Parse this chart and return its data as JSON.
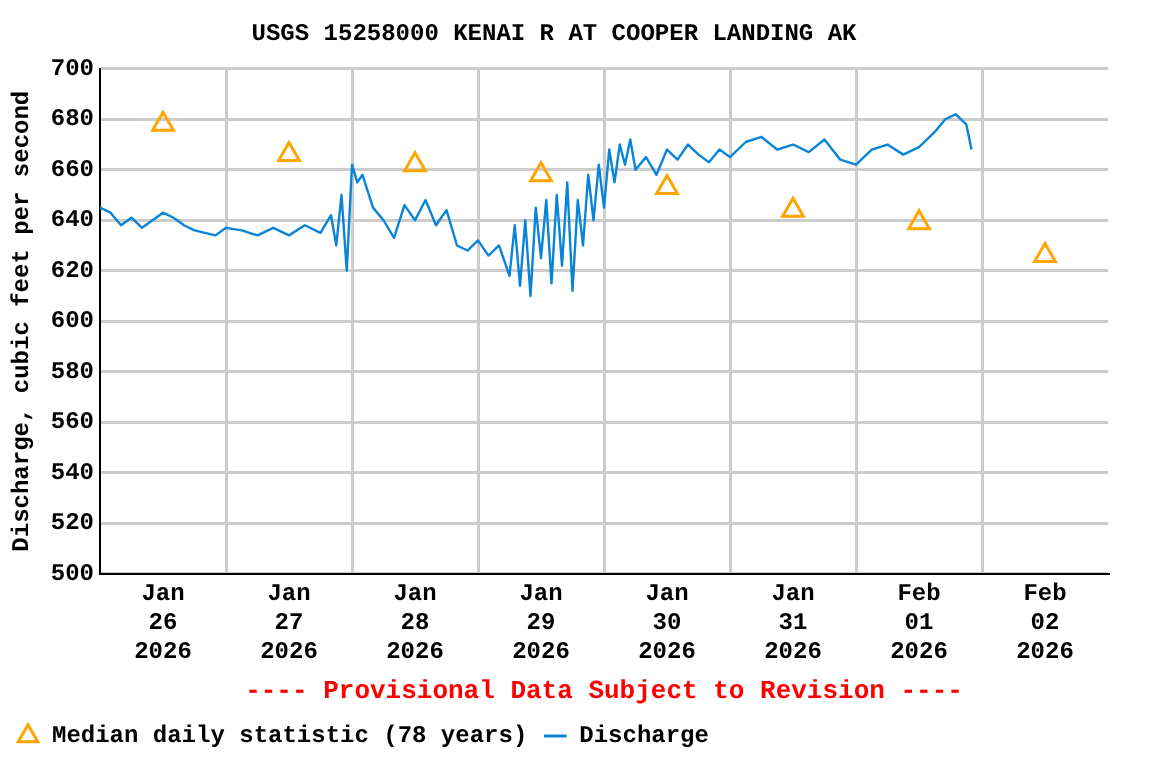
{
  "chart_data": {
    "type": "line",
    "title": "USGS 15258000 KENAI R AT COOPER LANDING AK",
    "ylabel": "Discharge, cubic feet per second",
    "xlim": [
      "2026-01-26T00:00",
      "2026-02-03T00:00"
    ],
    "xticks": [
      {
        "value": "2026-01-26T12:00",
        "label": "Jan 26 2026"
      },
      {
        "value": "2026-01-27T00:00",
        "label": null
      },
      {
        "value": "2026-01-27T12:00",
        "label": "Jan 27 2026"
      },
      {
        "value": "2026-01-28T00:00",
        "label": null
      },
      {
        "value": "2026-01-28T12:00",
        "label": "Jan 28 2026"
      },
      {
        "value": "2026-01-29T00:00",
        "label": null
      },
      {
        "value": "2026-01-29T12:00",
        "label": "Jan 29 2026"
      },
      {
        "value": "2026-01-30T00:00",
        "label": null
      },
      {
        "value": "2026-01-30T12:00",
        "label": "Jan 30 2026"
      },
      {
        "value": "2026-01-31T00:00",
        "label": null
      },
      {
        "value": "2026-01-31T12:00",
        "label": "Jan 31 2026"
      },
      {
        "value": "2026-02-01T00:00",
        "label": null
      },
      {
        "value": "2026-02-01T12:00",
        "label": "Feb 01 2026"
      },
      {
        "value": "2026-02-02T00:00",
        "label": null
      },
      {
        "value": "2026-02-02T12:00",
        "label": "Feb 02 2026"
      }
    ],
    "ylim": [
      500,
      700
    ],
    "yticks": [
      500,
      520,
      540,
      560,
      580,
      600,
      620,
      640,
      660,
      680,
      700
    ],
    "grid": true,
    "legend": "bottom",
    "annotations": [
      "---- Provisional Data Subject to Revision ----"
    ],
    "series": [
      {
        "name": "Median daily statistic (78 years)",
        "type": "scatter",
        "marker": "triangle",
        "color": "#ffa500",
        "x": [
          "2026-01-26T12:00",
          "2026-01-27T12:00",
          "2026-01-28T12:00",
          "2026-01-29T12:00",
          "2026-01-30T12:00",
          "2026-01-31T12:00",
          "2026-02-01T12:00",
          "2026-02-02T12:00"
        ],
        "values": [
          678,
          666,
          662,
          658,
          653,
          644,
          639,
          626
        ]
      },
      {
        "name": "Discharge",
        "type": "line",
        "marker": "none",
        "color": "#0a84d6",
        "x": [
          "2026-01-26T00:00",
          "2026-01-26T02:00",
          "2026-01-26T04:00",
          "2026-01-26T06:00",
          "2026-01-26T08:00",
          "2026-01-26T10:00",
          "2026-01-26T12:00",
          "2026-01-26T14:00",
          "2026-01-26T16:00",
          "2026-01-26T18:00",
          "2026-01-26T20:00",
          "2026-01-26T22:00",
          "2026-01-27T00:00",
          "2026-01-27T03:00",
          "2026-01-27T06:00",
          "2026-01-27T09:00",
          "2026-01-27T12:00",
          "2026-01-27T15:00",
          "2026-01-27T18:00",
          "2026-01-27T20:00",
          "2026-01-27T21:00",
          "2026-01-27T22:00",
          "2026-01-27T23:00",
          "2026-01-28T00:00",
          "2026-01-28T01:00",
          "2026-01-28T02:00",
          "2026-01-28T04:00",
          "2026-01-28T06:00",
          "2026-01-28T08:00",
          "2026-01-28T10:00",
          "2026-01-28T12:00",
          "2026-01-28T14:00",
          "2026-01-28T16:00",
          "2026-01-28T18:00",
          "2026-01-28T20:00",
          "2026-01-28T22:00",
          "2026-01-29T00:00",
          "2026-01-29T02:00",
          "2026-01-29T04:00",
          "2026-01-29T06:00",
          "2026-01-29T07:00",
          "2026-01-29T08:00",
          "2026-01-29T09:00",
          "2026-01-29T10:00",
          "2026-01-29T11:00",
          "2026-01-29T12:00",
          "2026-01-29T13:00",
          "2026-01-29T14:00",
          "2026-01-29T15:00",
          "2026-01-29T16:00",
          "2026-01-29T17:00",
          "2026-01-29T18:00",
          "2026-01-29T19:00",
          "2026-01-29T20:00",
          "2026-01-29T21:00",
          "2026-01-29T22:00",
          "2026-01-29T23:00",
          "2026-01-30T00:00",
          "2026-01-30T01:00",
          "2026-01-30T02:00",
          "2026-01-30T03:00",
          "2026-01-30T04:00",
          "2026-01-30T05:00",
          "2026-01-30T06:00",
          "2026-01-30T08:00",
          "2026-01-30T10:00",
          "2026-01-30T12:00",
          "2026-01-30T14:00",
          "2026-01-30T16:00",
          "2026-01-30T18:00",
          "2026-01-30T20:00",
          "2026-01-30T22:00",
          "2026-01-31T00:00",
          "2026-01-31T03:00",
          "2026-01-31T06:00",
          "2026-01-31T09:00",
          "2026-01-31T12:00",
          "2026-01-31T15:00",
          "2026-01-31T18:00",
          "2026-01-31T21:00",
          "2026-02-01T00:00",
          "2026-02-01T03:00",
          "2026-02-01T06:00",
          "2026-02-01T09:00",
          "2026-02-01T12:00",
          "2026-02-01T15:00",
          "2026-02-01T17:00",
          "2026-02-01T19:00",
          "2026-02-01T20:00",
          "2026-02-01T21:00",
          "2026-02-01T22:00"
        ],
        "values": [
          645,
          643,
          638,
          641,
          637,
          640,
          643,
          641,
          638,
          636,
          635,
          634,
          637,
          636,
          634,
          637,
          634,
          638,
          635,
          642,
          630,
          650,
          620,
          662,
          655,
          658,
          645,
          640,
          633,
          646,
          640,
          648,
          638,
          644,
          630,
          628,
          632,
          626,
          630,
          618,
          638,
          614,
          640,
          610,
          645,
          625,
          648,
          615,
          650,
          622,
          655,
          612,
          648,
          630,
          658,
          640,
          662,
          645,
          668,
          655,
          670,
          662,
          672,
          660,
          665,
          658,
          668,
          664,
          670,
          666,
          663,
          668,
          665,
          671,
          673,
          668,
          670,
          667,
          672,
          664,
          662,
          668,
          670,
          666,
          669,
          675,
          680,
          682,
          680,
          678,
          668
        ]
      }
    ]
  }
}
